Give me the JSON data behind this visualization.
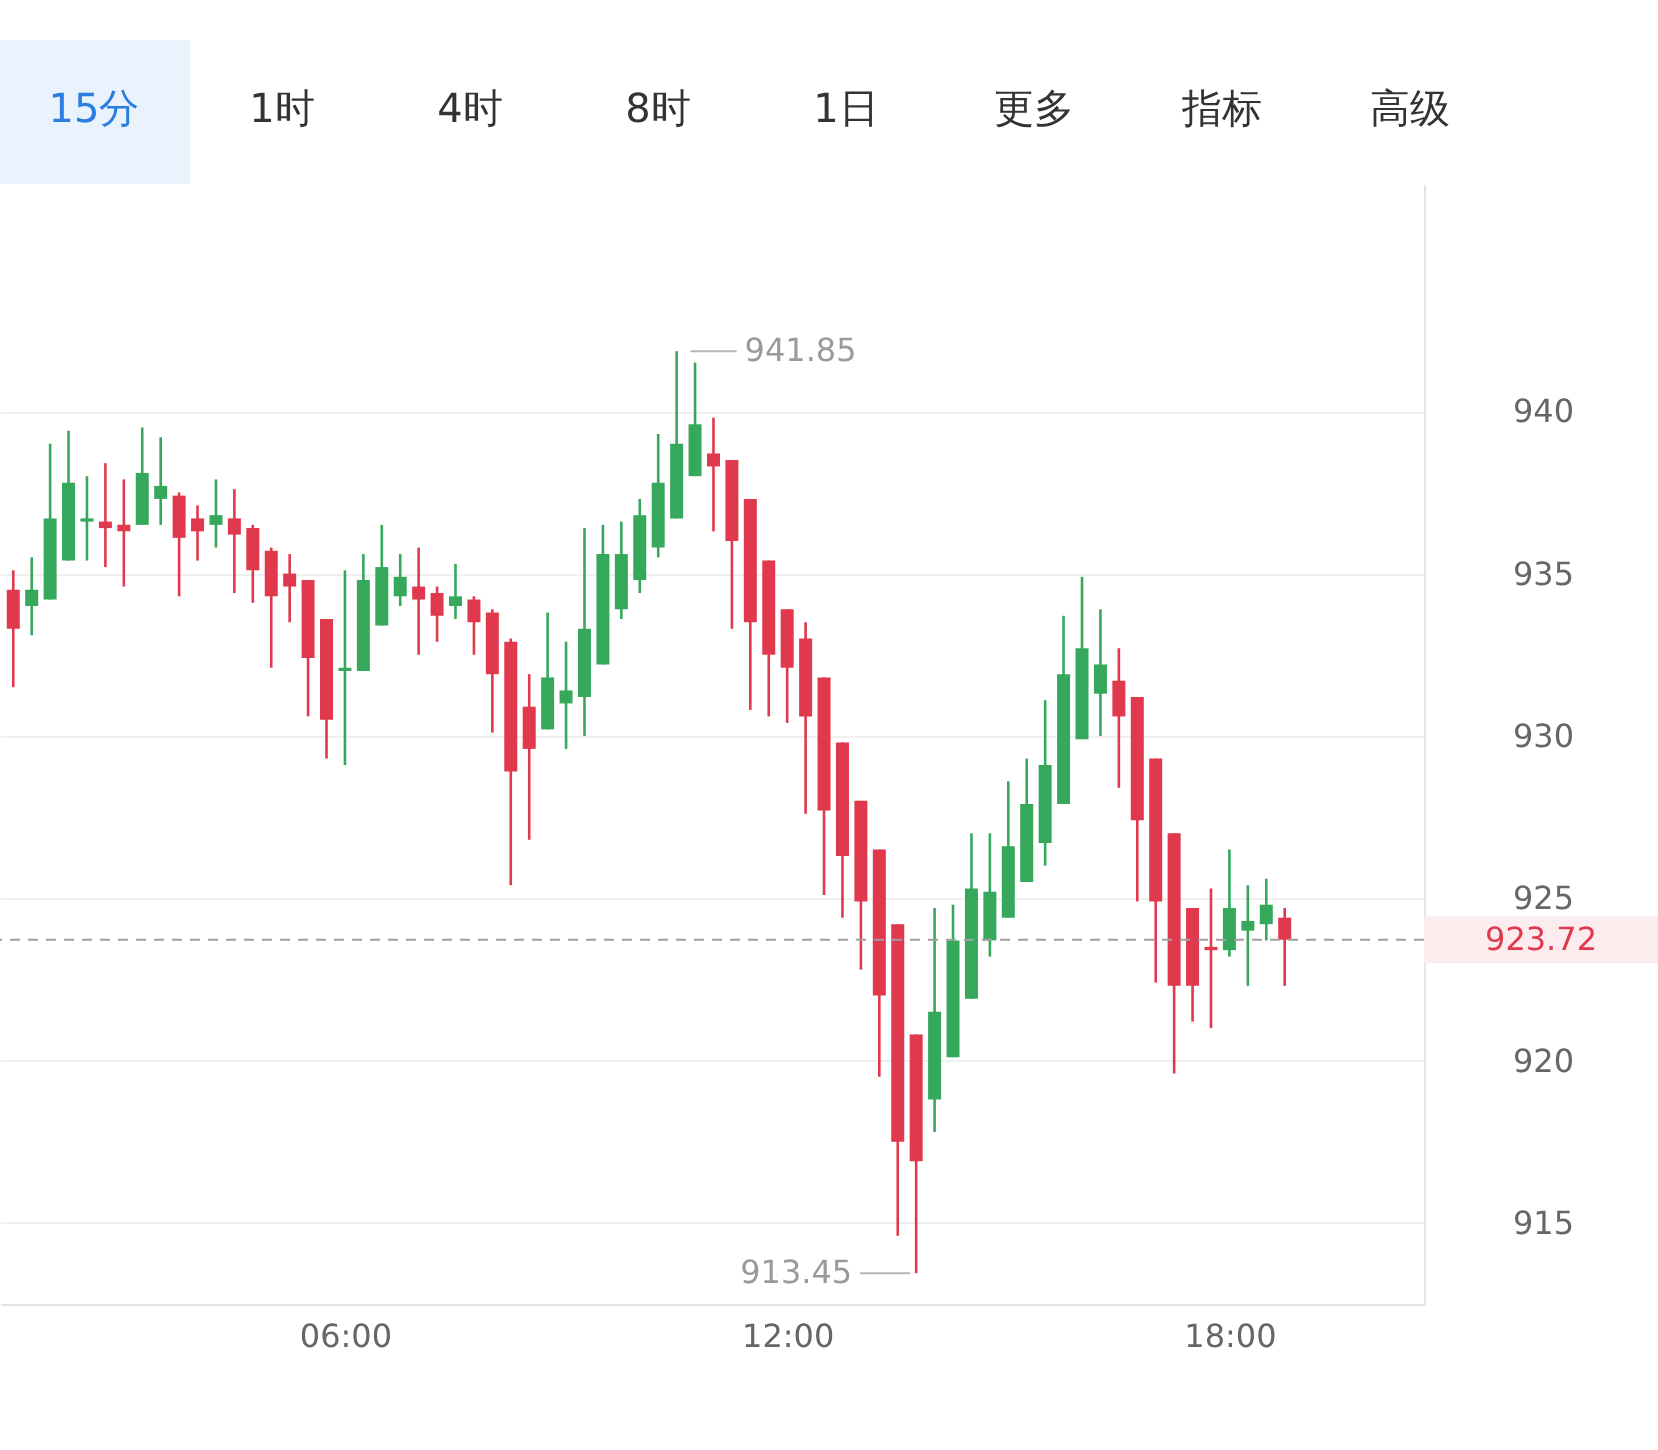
{
  "chart_data": {
    "type": "candlestick",
    "annotations": [
      "15分",
      "1时",
      "4时",
      "8时",
      "1日",
      "更多",
      "指标",
      "高级",
      {
        "text": "941.85",
        "x": 10.5,
        "y": 941.85
      },
      {
        "text": "913.45",
        "x": 13.75,
        "y": 913.45
      }
    ],
    "x": [
      1.5,
      1.75,
      2,
      2.25,
      2.5,
      2.75,
      3,
      3.25,
      3.5,
      3.75,
      4,
      4.25,
      4.5,
      4.75,
      5,
      5.25,
      5.5,
      5.75,
      6,
      6.25,
      6.5,
      6.75,
      7,
      7.25,
      7.5,
      7.75,
      8,
      8.25,
      8.5,
      8.75,
      9,
      9.25,
      9.5,
      9.75,
      10,
      10.25,
      10.5,
      10.75,
      11,
      11.25,
      11.5,
      11.75,
      12,
      12.25,
      12.5,
      12.75,
      13,
      13.25,
      13.5,
      13.75,
      14,
      14.25,
      14.5,
      14.75,
      15,
      15.25,
      15.5,
      15.75,
      16,
      16.25,
      16.5,
      16.75,
      17,
      17.25,
      17.5,
      17.75,
      18,
      18.25,
      18.5,
      18.75
    ],
    "ohlc": [
      [
        934.5,
        935.1,
        931.5,
        933.3
      ],
      [
        934.0,
        935.5,
        933.1,
        934.5
      ],
      [
        934.2,
        939.0,
        934.2,
        936.7
      ],
      [
        935.4,
        939.4,
        935.4,
        937.8
      ],
      [
        936.6,
        938.0,
        935.4,
        936.7
      ],
      [
        936.6,
        938.4,
        935.2,
        936.4
      ],
      [
        936.5,
        937.9,
        934.6,
        936.3
      ],
      [
        936.5,
        939.5,
        936.5,
        938.1
      ],
      [
        937.3,
        939.2,
        936.5,
        937.7
      ],
      [
        937.4,
        937.5,
        934.3,
        936.1
      ],
      [
        936.7,
        937.1,
        935.4,
        936.3
      ],
      [
        936.5,
        937.9,
        935.8,
        936.8
      ],
      [
        936.7,
        937.6,
        934.4,
        936.2
      ],
      [
        936.4,
        936.5,
        934.1,
        935.1
      ],
      [
        935.7,
        935.8,
        932.1,
        934.3
      ],
      [
        935.0,
        935.6,
        933.5,
        934.6
      ],
      [
        934.8,
        934.8,
        930.6,
        932.4
      ],
      [
        933.6,
        933.6,
        929.3,
        930.5
      ],
      [
        932.0,
        935.1,
        929.1,
        932.1
      ],
      [
        932.0,
        935.6,
        932.0,
        934.8
      ],
      [
        933.4,
        936.5,
        933.4,
        935.2
      ],
      [
        934.3,
        935.6,
        934.0,
        934.9
      ],
      [
        934.6,
        935.8,
        932.5,
        934.2
      ],
      [
        934.4,
        934.6,
        932.9,
        933.7
      ],
      [
        934.0,
        935.3,
        933.6,
        934.3
      ],
      [
        934.2,
        934.3,
        932.5,
        933.5
      ],
      [
        933.8,
        933.9,
        930.1,
        931.9
      ],
      [
        932.9,
        933.0,
        925.4,
        928.9
      ],
      [
        930.9,
        931.9,
        926.8,
        929.6
      ],
      [
        930.2,
        933.8,
        930.2,
        931.8
      ],
      [
        931.0,
        932.9,
        929.6,
        931.4
      ],
      [
        931.2,
        936.4,
        930.0,
        933.3
      ],
      [
        932.2,
        936.5,
        932.2,
        935.6
      ],
      [
        933.9,
        936.6,
        933.6,
        935.6
      ],
      [
        934.8,
        937.3,
        934.4,
        936.8
      ],
      [
        935.8,
        939.3,
        935.5,
        937.8
      ],
      [
        936.7,
        941.85,
        936.7,
        939.0
      ],
      [
        938.0,
        941.5,
        938.0,
        939.6
      ],
      [
        938.7,
        939.8,
        936.3,
        938.3
      ],
      [
        938.5,
        938.5,
        933.3,
        936.0
      ],
      [
        937.3,
        937.3,
        930.8,
        933.5
      ],
      [
        935.4,
        935.4,
        930.6,
        932.5
      ],
      [
        933.9,
        933.9,
        930.4,
        932.1
      ],
      [
        933.0,
        933.5,
        927.6,
        930.6
      ],
      [
        931.8,
        931.8,
        925.1,
        927.7
      ],
      [
        929.8,
        929.8,
        924.4,
        926.3
      ],
      [
        928.0,
        928.0,
        922.8,
        924.9
      ],
      [
        926.5,
        926.5,
        919.5,
        922.0
      ],
      [
        924.2,
        924.2,
        914.6,
        917.5
      ],
      [
        920.8,
        920.8,
        913.45,
        916.9
      ],
      [
        918.8,
        924.7,
        917.8,
        921.5
      ],
      [
        920.1,
        924.8,
        920.1,
        923.7
      ],
      [
        921.9,
        927.0,
        921.9,
        925.3
      ],
      [
        923.7,
        927.0,
        923.2,
        925.2
      ],
      [
        924.4,
        928.6,
        924.4,
        926.6
      ],
      [
        925.5,
        929.3,
        925.5,
        927.9
      ],
      [
        926.7,
        931.1,
        926.0,
        929.1
      ],
      [
        927.9,
        933.7,
        927.9,
        931.9
      ],
      [
        929.9,
        934.9,
        929.9,
        932.7
      ],
      [
        931.3,
        933.9,
        930.0,
        932.2
      ],
      [
        931.7,
        932.7,
        928.4,
        930.6
      ],
      [
        931.2,
        931.2,
        924.9,
        927.4
      ],
      [
        929.3,
        929.3,
        922.4,
        924.9
      ],
      [
        927.0,
        927.0,
        919.6,
        922.3
      ],
      [
        924.7,
        924.7,
        921.2,
        922.3
      ],
      [
        923.5,
        925.3,
        921.0,
        923.4
      ],
      [
        923.4,
        926.5,
        923.2,
        924.7
      ],
      [
        924.0,
        925.4,
        922.3,
        924.3
      ],
      [
        924.2,
        925.6,
        923.7,
        924.8
      ],
      [
        924.4,
        924.7,
        922.3,
        923.72
      ]
    ],
    "colors": [
      "#e0384c",
      "#36a85b",
      "#36a85b",
      "#36a85b",
      "#36a85b",
      "#e0384c",
      "#e0384c",
      "#36a85b",
      "#36a85b",
      "#e0384c",
      "#e0384c",
      "#36a85b",
      "#e0384c",
      "#e0384c",
      "#e0384c",
      "#e0384c",
      "#e0384c",
      "#e0384c",
      "#36a85b",
      "#36a85b",
      "#36a85b",
      "#36a85b",
      "#e0384c",
      "#e0384c",
      "#36a85b",
      "#e0384c",
      "#e0384c",
      "#e0384c",
      "#e0384c",
      "#36a85b",
      "#36a85b",
      "#36a85b",
      "#36a85b",
      "#36a85b",
      "#36a85b",
      "#36a85b",
      "#36a85b",
      "#36a85b",
      "#e0384c",
      "#e0384c",
      "#e0384c",
      "#e0384c",
      "#e0384c",
      "#e0384c",
      "#e0384c",
      "#e0384c",
      "#e0384c",
      "#e0384c",
      "#e0384c",
      "#e0384c",
      "#36a85b",
      "#36a85b",
      "#36a85b",
      "#36a85b",
      "#36a85b",
      "#36a85b",
      "#36a85b",
      "#36a85b",
      "#36a85b",
      "#36a85b",
      "#e0384c",
      "#e0384c",
      "#e0384c",
      "#e0384c",
      "#e0384c",
      "#e0384c",
      "#36a85b",
      "#36a85b",
      "#36a85b",
      "#e0384c"
    ],
    "xlim": [
      1.32,
      20.64
    ],
    "xticks": [
      {
        "value": 6,
        "label": "06:00"
      },
      {
        "value": 12,
        "label": "12:00"
      },
      {
        "value": 18,
        "label": "18:00"
      }
    ],
    "ylim": [
      912.5,
      947.0
    ],
    "yticks": [
      915,
      920,
      925,
      930,
      935,
      940
    ],
    "grid": "y",
    "ref_lines": [
      {
        "axis": "y",
        "value": 923.72,
        "label": "923.72",
        "color": "#a0a0a0",
        "line_style": "dashed"
      }
    ]
  }
}
